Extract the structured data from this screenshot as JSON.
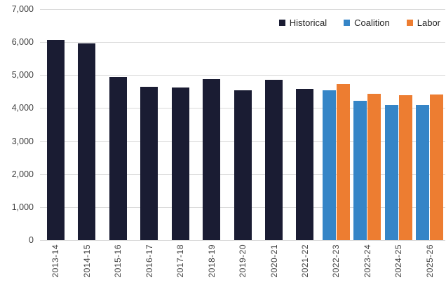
{
  "chart_data": {
    "type": "bar",
    "title": "",
    "xlabel": "",
    "ylabel": "",
    "ylim": [
      0,
      7000
    ],
    "y_step": 1000,
    "grid": true,
    "legend_position": "top-right",
    "y_tick_labels": [
      "7,000",
      "6,000",
      "5,000",
      "4,000",
      "3,000",
      "2,000",
      "1,000",
      "0"
    ],
    "categories": [
      "2013-14",
      "2014-15",
      "2015-16",
      "2016-17",
      "2017-18",
      "2018-19",
      "2019-20",
      "2020-21",
      "2021-22",
      "2022-23",
      "2023-24",
      "2024-25",
      "2025-26"
    ],
    "series": [
      {
        "name": "Historical",
        "color": "#1a1c33",
        "values": [
          6070,
          5960,
          4950,
          4640,
          4620,
          4870,
          4550,
          4860,
          4590,
          null,
          null,
          null,
          null
        ]
      },
      {
        "name": "Coalition",
        "color": "#3585c7",
        "values": [
          null,
          null,
          null,
          null,
          null,
          null,
          null,
          null,
          null,
          4550,
          4220,
          4090,
          4090
        ]
      },
      {
        "name": "Labor",
        "color": "#ed7d31",
        "values": [
          null,
          null,
          null,
          null,
          null,
          null,
          null,
          null,
          null,
          4740,
          4440,
          4390,
          4410
        ]
      }
    ],
    "colors": {
      "gridline": "#d9d9d9",
      "axis_text": "#404040",
      "legend_text": "#262626",
      "background": "#ffffff"
    }
  }
}
